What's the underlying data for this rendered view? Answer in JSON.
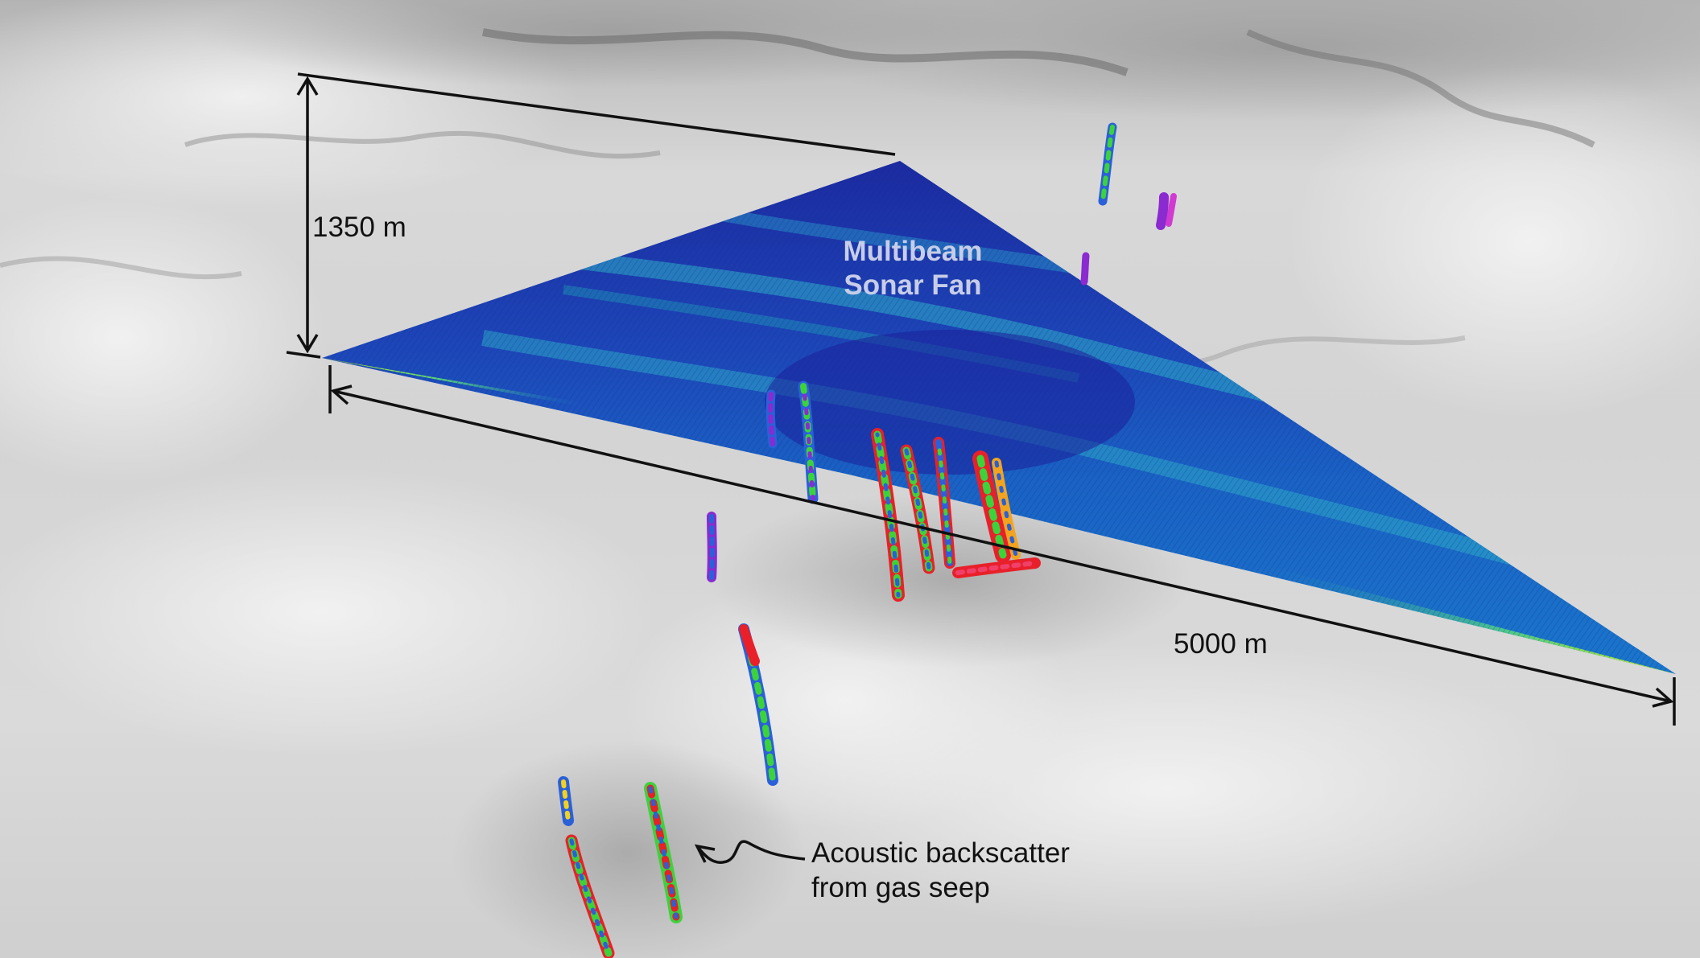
{
  "annotations": {
    "height_label": "1350 m",
    "width_label": "5000 m",
    "fan_title_line1": "Multibeam",
    "fan_title_line2": "Sonar Fan",
    "seep_label_line1": "Acoustic backscatter",
    "seep_label_line2": "from gas seep"
  },
  "colors": {
    "fan_deep": "#1f2ca6",
    "fan_mid": "#1a6cc8",
    "fan_cyan": "#2eb0c8",
    "fan_edge": "#b6f21e",
    "seep_red": "#e8202a",
    "seep_green": "#3cd23c",
    "seep_blue": "#2a60d8",
    "seep_purple": "#8a2ad0",
    "seabed_light": "#ececec",
    "seabed_dark": "#8c8c8c",
    "annotation": "#111111"
  }
}
